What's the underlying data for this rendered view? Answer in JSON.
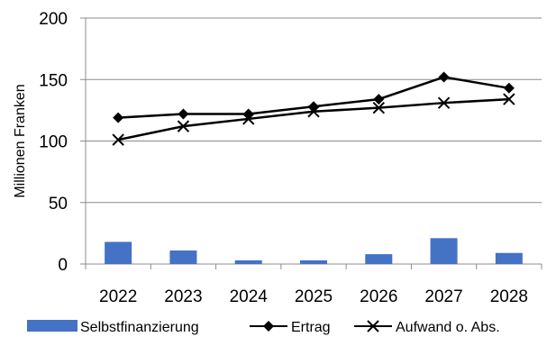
{
  "chart_data": {
    "type": "bar",
    "categories": [
      "2022",
      "2023",
      "2024",
      "2025",
      "2026",
      "2027",
      "2028"
    ],
    "ylabel": "Millionen Franken",
    "ylim": [
      0,
      200
    ],
    "yticks": [
      0,
      50,
      100,
      150,
      200
    ],
    "grid": true,
    "legend_position": "bottom",
    "series": [
      {
        "name": "Selbstfinanzierung",
        "kind": "bar",
        "color": "#4472c4",
        "values": [
          18,
          11,
          3,
          3,
          8,
          21,
          9
        ]
      },
      {
        "name": "Ertrag",
        "kind": "line",
        "marker": "diamond",
        "color": "#000000",
        "values": [
          119,
          122,
          122,
          128,
          134,
          152,
          143
        ]
      },
      {
        "name": "Aufwand o. Abs.",
        "kind": "line",
        "marker": "x",
        "color": "#000000",
        "values": [
          101,
          112,
          118,
          124,
          127,
          131,
          134
        ]
      }
    ]
  }
}
